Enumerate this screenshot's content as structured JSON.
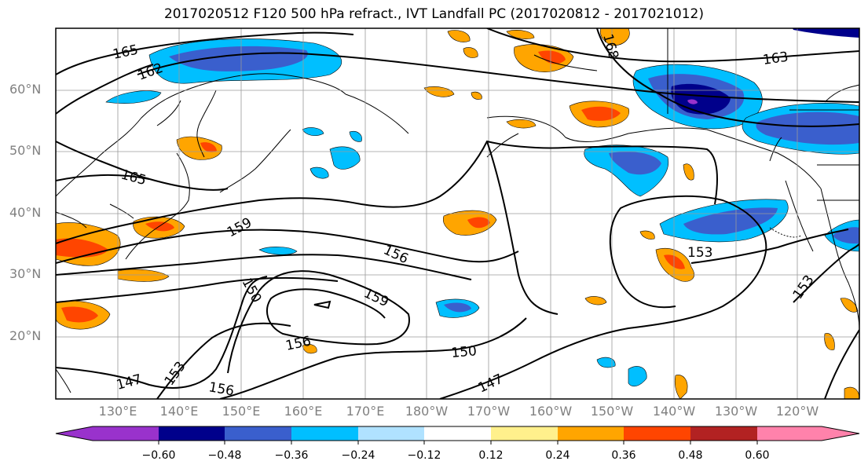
{
  "title": "2017020512 F120 500 hPa refract., IVT Landfall PC (2017020812 - 2017021012)",
  "lat_labels": [
    "60°N",
    "50°N",
    "40°N",
    "30°N",
    "20°N"
  ],
  "lon_labels": [
    "130°E",
    "140°E",
    "150°E",
    "160°E",
    "170°E",
    "180°W",
    "170°W",
    "160°W",
    "150°W",
    "140°W",
    "130°W",
    "120°W"
  ],
  "contour_labels": [
    "165",
    "162",
    "168",
    "163",
    "165",
    "159",
    "156",
    "150",
    "159",
    "156",
    "153",
    "150",
    "147",
    "153",
    "156",
    "147",
    "153"
  ],
  "colorbar": {
    "ticks": [
      "−0.60",
      "−0.48",
      "−0.36",
      "−0.24",
      "−0.12",
      "0.12",
      "0.24",
      "0.36",
      "0.48",
      "0.60"
    ],
    "colors": [
      "#9932cc",
      "#00008b",
      "#3a5fcd",
      "#00bfff",
      "#b0e2ff",
      "#ffffff",
      "#fff08c",
      "#ffa500",
      "#ff4500",
      "#b22222",
      "#ff82ab"
    ]
  }
}
